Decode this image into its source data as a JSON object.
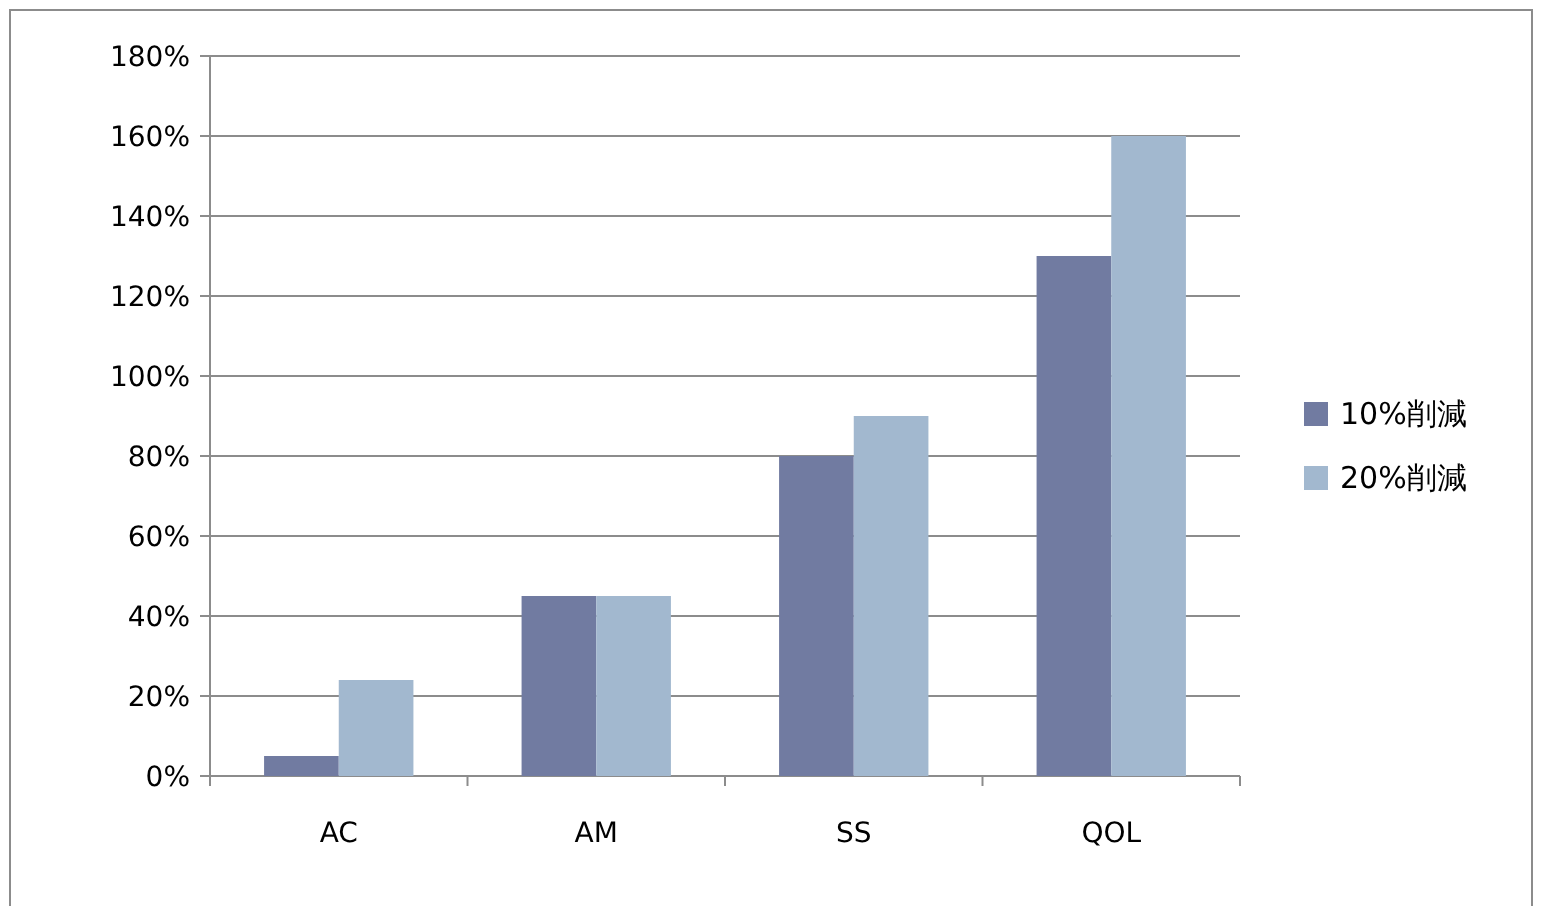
{
  "chart_data": {
    "type": "bar",
    "categories": [
      "AC",
      "AM",
      "SS",
      "QOL"
    ],
    "series": [
      {
        "name": "10%削減",
        "color": "#717ba1",
        "values": [
          5,
          45,
          80,
          130
        ]
      },
      {
        "name": "20%削減",
        "color": "#a2b8cf",
        "values": [
          24,
          45,
          90,
          160
        ]
      }
    ],
    "ylim": [
      0,
      180
    ],
    "yticks": [
      {
        "value": 0,
        "label": "0%"
      },
      {
        "value": 20,
        "label": "20%"
      },
      {
        "value": 40,
        "label": "40%"
      },
      {
        "value": 60,
        "label": "60%"
      },
      {
        "value": 80,
        "label": "80%"
      },
      {
        "value": 100,
        "label": "100%"
      },
      {
        "value": 120,
        "label": "120%"
      },
      {
        "value": 140,
        "label": "140%"
      },
      {
        "value": 160,
        "label": "160%"
      },
      {
        "value": 180,
        "label": "180%"
      }
    ],
    "grid": "y",
    "legend": "right"
  }
}
